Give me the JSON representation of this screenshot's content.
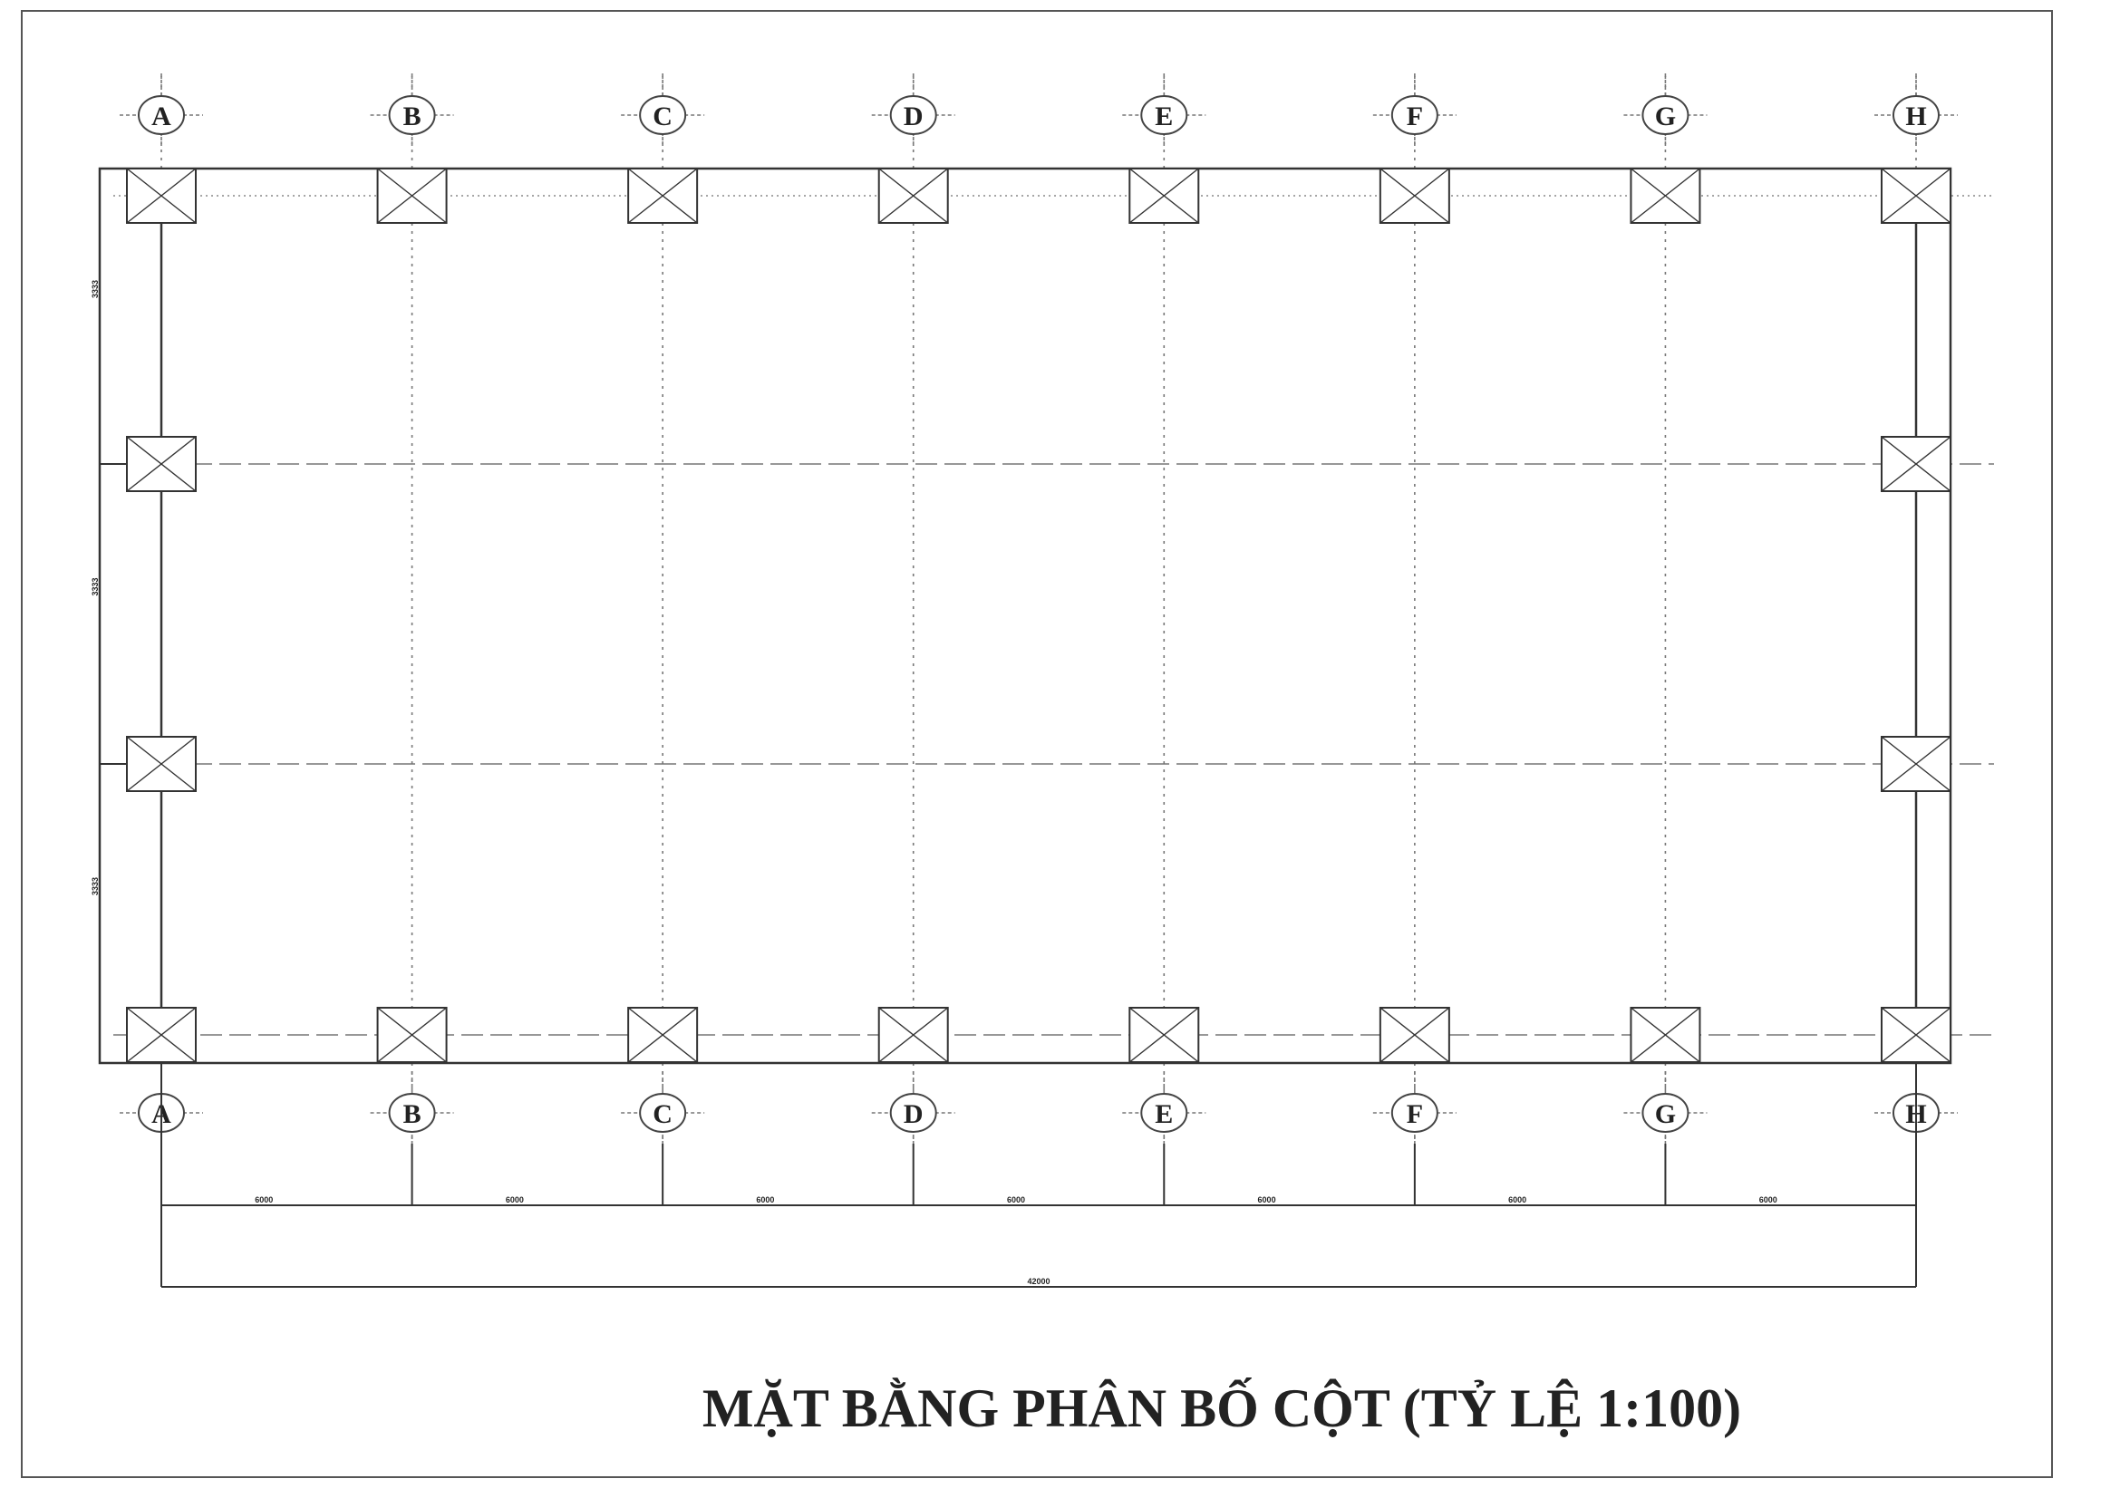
{
  "title": "MẶT BẰNG PHÂN BỐ CỘT (TỶ LỆ 1:100)",
  "grid_axes": [
    "A",
    "B",
    "C",
    "D",
    "E",
    "F",
    "G",
    "H"
  ],
  "bay_dimension_label": "6000",
  "total_dimension_label": "42000",
  "side_dimension_label": "3333",
  "bay_count": 7,
  "side_bay_count": 3
}
